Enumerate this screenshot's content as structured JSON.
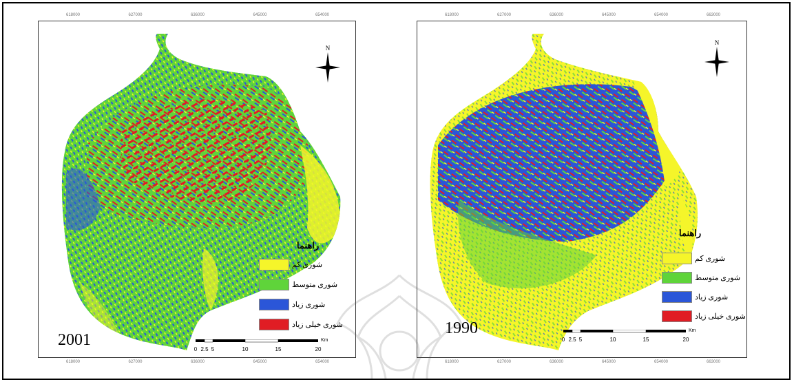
{
  "figure": {
    "colors": {
      "low": "#f5f52a",
      "medium": "#5fd43a",
      "high": "#2b56d8",
      "very_high": "#e01d24"
    }
  },
  "maps": [
    {
      "year": "2001",
      "top_ticks": [
        "618000",
        "627000",
        "636000",
        "645000",
        "654000"
      ],
      "bottom_ticks": [
        "618000",
        "627000",
        "636000",
        "645000",
        "654000"
      ],
      "north_label": "N",
      "legend": {
        "title": "راهنما",
        "items": [
          {
            "label": "شوری کم",
            "color": "#f5f52a"
          },
          {
            "label": "شوری متوسط",
            "color": "#5fd43a"
          },
          {
            "label": "شوری زیاد",
            "color": "#2b56d8"
          },
          {
            "label": "شوری خیلی زیاد",
            "color": "#e01d24"
          }
        ]
      },
      "scale": {
        "labels": [
          "0",
          "2.5",
          "5",
          "10",
          "15",
          "20"
        ],
        "unit": "Km"
      }
    },
    {
      "year": "1990",
      "top_ticks": [
        "618000",
        "627000",
        "636000",
        "645000",
        "654000",
        "663000"
      ],
      "bottom_ticks": [
        "618000",
        "627000",
        "636000",
        "645000",
        "654000",
        "663000"
      ],
      "north_label": "N",
      "legend": {
        "title": "راهنما",
        "items": [
          {
            "label": "شوری کم",
            "color": "#f5f52a"
          },
          {
            "label": "شوری متوسط",
            "color": "#5fd43a"
          },
          {
            "label": "شوری زیاد",
            "color": "#2b56d8"
          },
          {
            "label": "شوری خیلی زیاد",
            "color": "#e01d24"
          }
        ]
      },
      "scale": {
        "labels": [
          "0",
          "2.5",
          "5",
          "10",
          "15",
          "20"
        ],
        "unit": "Km"
      }
    }
  ]
}
